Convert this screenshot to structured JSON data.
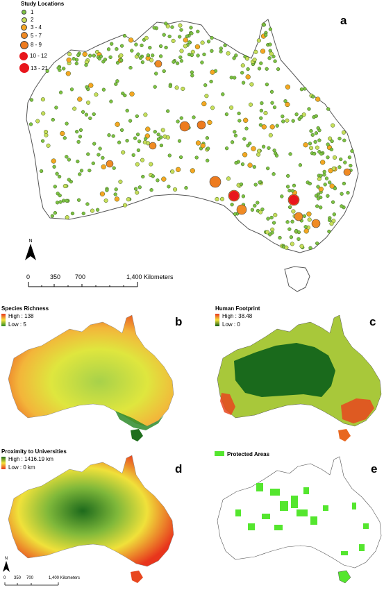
{
  "panel_a": {
    "letter": "a",
    "legend_title": "Study Locations",
    "classes": [
      {
        "label": "1",
        "color": "#7cc243"
      },
      {
        "label": "2",
        "color": "#c7de5a"
      },
      {
        "label": "3 - 4",
        "color": "#f5a623"
      },
      {
        "label": "5 - 7",
        "color": "#f08a24"
      },
      {
        "label": "8 - 9",
        "color": "#ed7b1f"
      },
      {
        "label": "10 - 12",
        "color": "#e8161c"
      },
      {
        "label": "13 - 21",
        "color": "#e8161c"
      }
    ],
    "north": "N",
    "scale_ticks": [
      "0",
      "350",
      "700",
      "1,400 Kilometers"
    ]
  },
  "panel_b": {
    "letter": "b",
    "title": "Species Richness",
    "high": "High : 138",
    "low": "Low : 5",
    "color_high": "#e8351c",
    "color_low": "#2a8a23"
  },
  "panel_c": {
    "letter": "c",
    "title": "Human Footprint",
    "high": "High : 38.48",
    "low": "Low : 0",
    "color_high": "#e8351c",
    "color_low": "#0f5a12"
  },
  "panel_d": {
    "letter": "d",
    "title": "Proximity to Universities",
    "high": "High : 1416.19 km",
    "low": "Low : 0 km",
    "north": "N",
    "scale_ticks": [
      "0",
      "350",
      "700",
      "1,400 Kilometers"
    ]
  },
  "panel_e": {
    "letter": "e",
    "legend": "Protected Areas",
    "color": "#54e62e"
  }
}
